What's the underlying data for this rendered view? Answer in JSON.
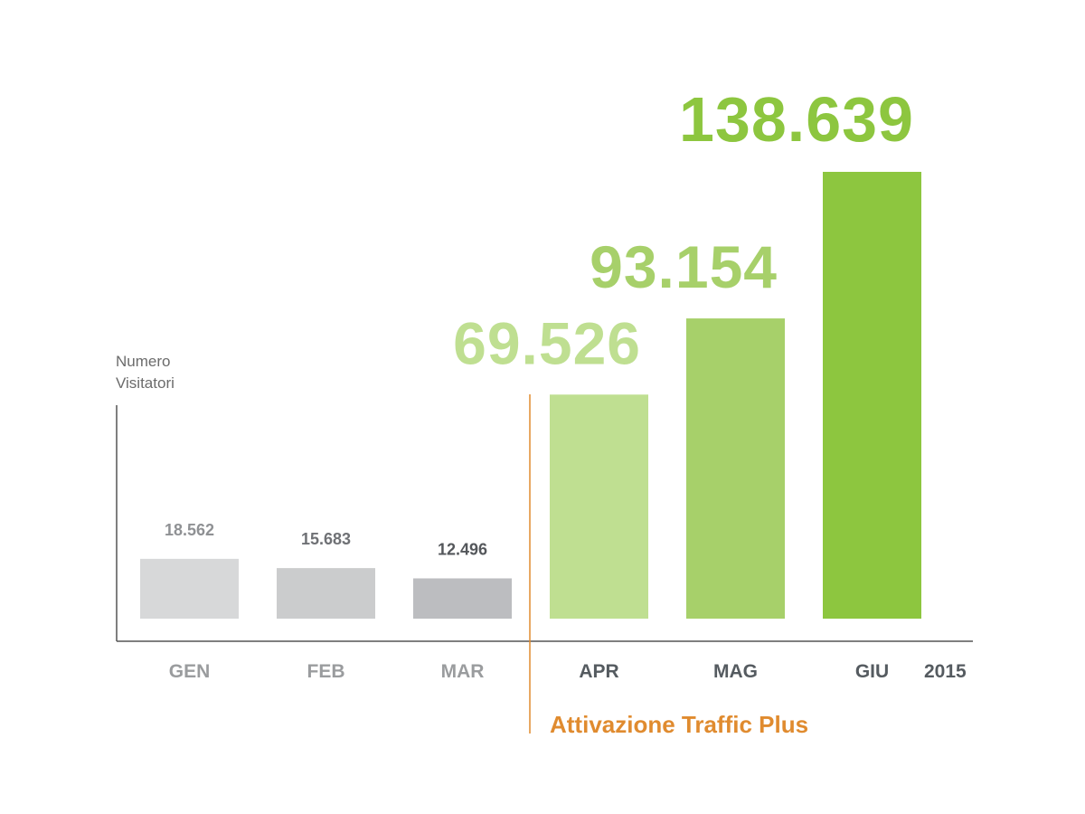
{
  "chart_data": {
    "type": "bar",
    "ylabel": [
      "Numero",
      "Visitatori"
    ],
    "categories": [
      "GEN",
      "FEB",
      "MAR",
      "APR",
      "MAG",
      "GIU"
    ],
    "values": [
      18562,
      15683,
      12496,
      69526,
      93154,
      138639
    ],
    "value_labels": [
      "18.562",
      "15.683",
      "12.496",
      "69.526",
      "93.154",
      "138.639"
    ],
    "year_label": "2015",
    "annotation": "Attivazione Traffic Plus",
    "ylim": [
      0,
      138639
    ],
    "grid": false,
    "bar_colors": [
      "#d7d8d9",
      "#cbcccd",
      "#bcbdc0",
      "#bfdf91",
      "#a7d06a",
      "#8dc63f"
    ],
    "value_label_colors": [
      "#8f9194",
      "#6f7175",
      "#54575b",
      "#bfdf91",
      "#a7d06a",
      "#8dc63f"
    ],
    "category_label_colors": [
      "#9a9c9e",
      "#9a9c9e",
      "#9a9c9e",
      "#555b60",
      "#555b60",
      "#555b60"
    ],
    "annotation_color": "#e08b2f",
    "axis_color": "#555555"
  }
}
